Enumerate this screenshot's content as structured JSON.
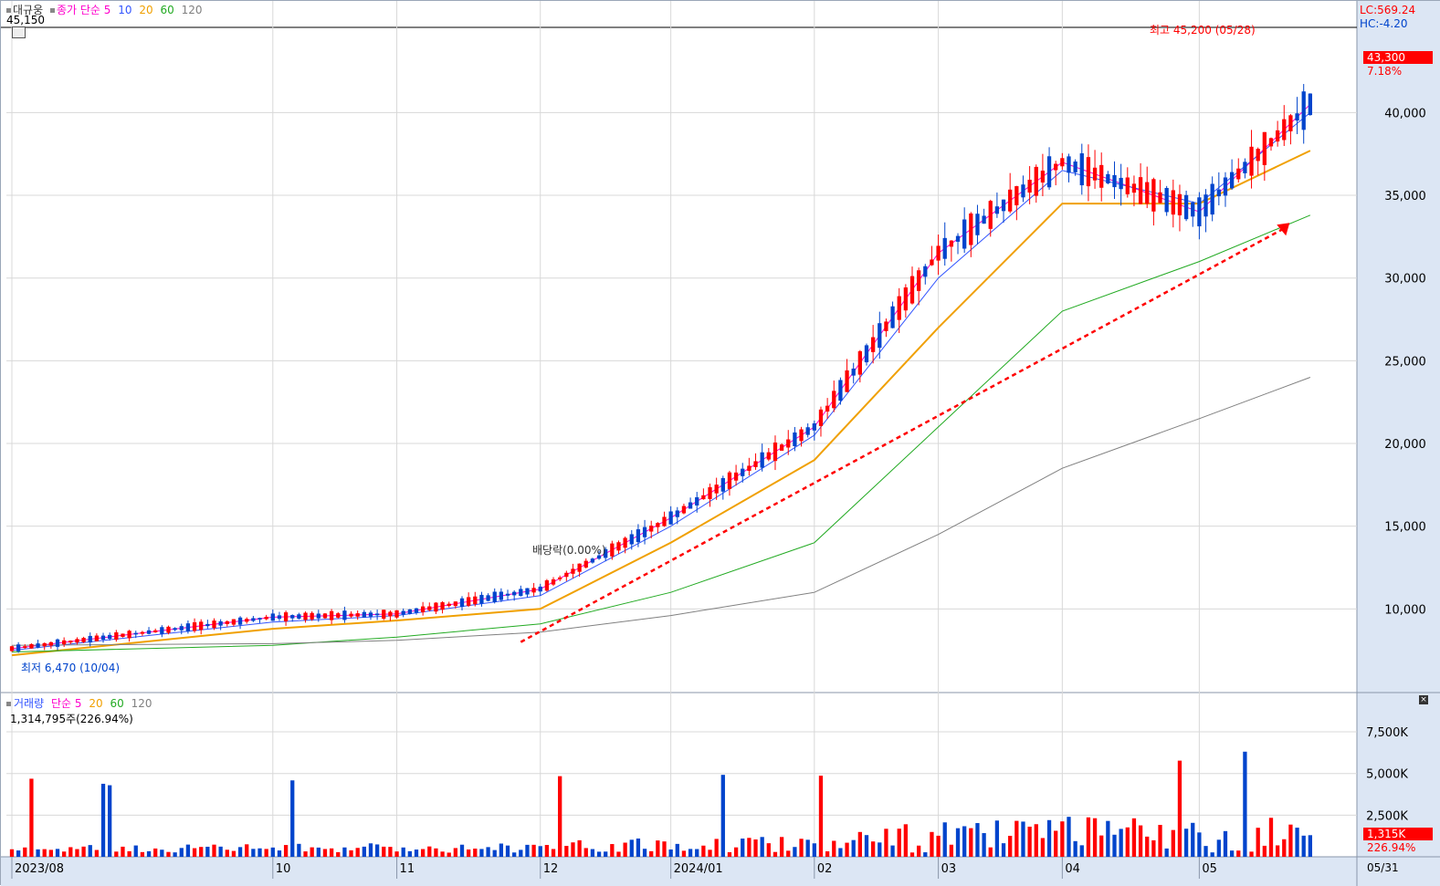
{
  "price_panel": {
    "stock_name": "대규웅",
    "ma_type": "종가 단순",
    "periods": [
      "5",
      "10",
      "20",
      "60",
      "120"
    ],
    "top_left_value": "45,150",
    "lc": "LC:569.24",
    "hc": "HC:-4.20",
    "last_price_label": "43,300",
    "change_pct_label": "7.18%",
    "high_annotation": "최고 45,200 (05/28)",
    "low_annotation": "최저 6,470 (10/04)",
    "dividend_annotation": "배당락(0.00%)"
  },
  "volume_panel": {
    "name": "거래량",
    "ma_type": "단순",
    "periods": [
      "5",
      "20",
      "60",
      "120"
    ],
    "summary": "1,314,795주(226.94%)",
    "last_volume_label": "1,315K",
    "volume_pct_label": "226.94%"
  },
  "x_axis": {
    "labels": [
      {
        "label": "2023/08",
        "index": 0
      },
      {
        "label": "10",
        "index": 40
      },
      {
        "label": "11",
        "index": 59
      },
      {
        "label": "12",
        "index": 81
      },
      {
        "label": "2024/01",
        "index": 101
      },
      {
        "label": "02",
        "index": 123
      },
      {
        "label": "03",
        "index": 142
      },
      {
        "label": "04",
        "index": 161
      },
      {
        "label": "05",
        "index": 182
      }
    ],
    "end_label": "05/31"
  },
  "colors": {
    "up": "#ff0000",
    "down": "#0044cc",
    "ma5": "#ff00cc",
    "ma10": "#3355ff",
    "ma20": "#f0a000",
    "ma60": "#22aa22",
    "ma120": "#808080",
    "trend": "#ff0000"
  },
  "chart_data": [
    {
      "type": "candlestick",
      "title": "대규웅",
      "y_axis": {
        "min": 5000,
        "max": 45150,
        "ticks": [
          10000,
          15000,
          20000,
          25000,
          30000,
          35000,
          40000
        ]
      },
      "high": 45200,
      "low": 6470,
      "last_close": 43300,
      "change_pct": 7.18,
      "moving_averages": [
        {
          "name": "5",
          "values": [
            7600,
            9500,
            9700,
            11200,
            15500,
            21000,
            31500,
            37000,
            34000,
            40500
          ]
        },
        {
          "name": "10",
          "values": [
            7500,
            9200,
            9600,
            10800,
            15000,
            20500,
            30000,
            36500,
            34500,
            40000
          ]
        },
        {
          "name": "20",
          "values": [
            7200,
            8800,
            9300,
            10000,
            14000,
            19000,
            27000,
            34500,
            34500,
            37700
          ]
        },
        {
          "name": "60",
          "values": [
            7400,
            7800,
            8300,
            9100,
            11000,
            14000,
            21000,
            28000,
            31000,
            33800
          ]
        },
        {
          "name": "120",
          "values": [
            7800,
            7900,
            8100,
            8600,
            9600,
            11000,
            14500,
            18500,
            21500,
            24000
          ]
        }
      ],
      "ma_x_index": [
        0,
        40,
        59,
        81,
        101,
        123,
        142,
        161,
        182,
        199
      ],
      "trendline": {
        "from": {
          "index": 78,
          "value": 8000
        },
        "to": {
          "index": 195,
          "value": 33000
        }
      }
    },
    {
      "type": "bar",
      "title": "거래량",
      "unit": "주",
      "y_axis": {
        "min": 0,
        "max": 9200000,
        "ticks": [
          2500000,
          5000000,
          7500000
        ]
      },
      "y_tick_labels": [
        "2,500K",
        "5,000K",
        "7,500K"
      ],
      "last_volume": 1314795,
      "last_volume_pct": 226.94
    }
  ]
}
